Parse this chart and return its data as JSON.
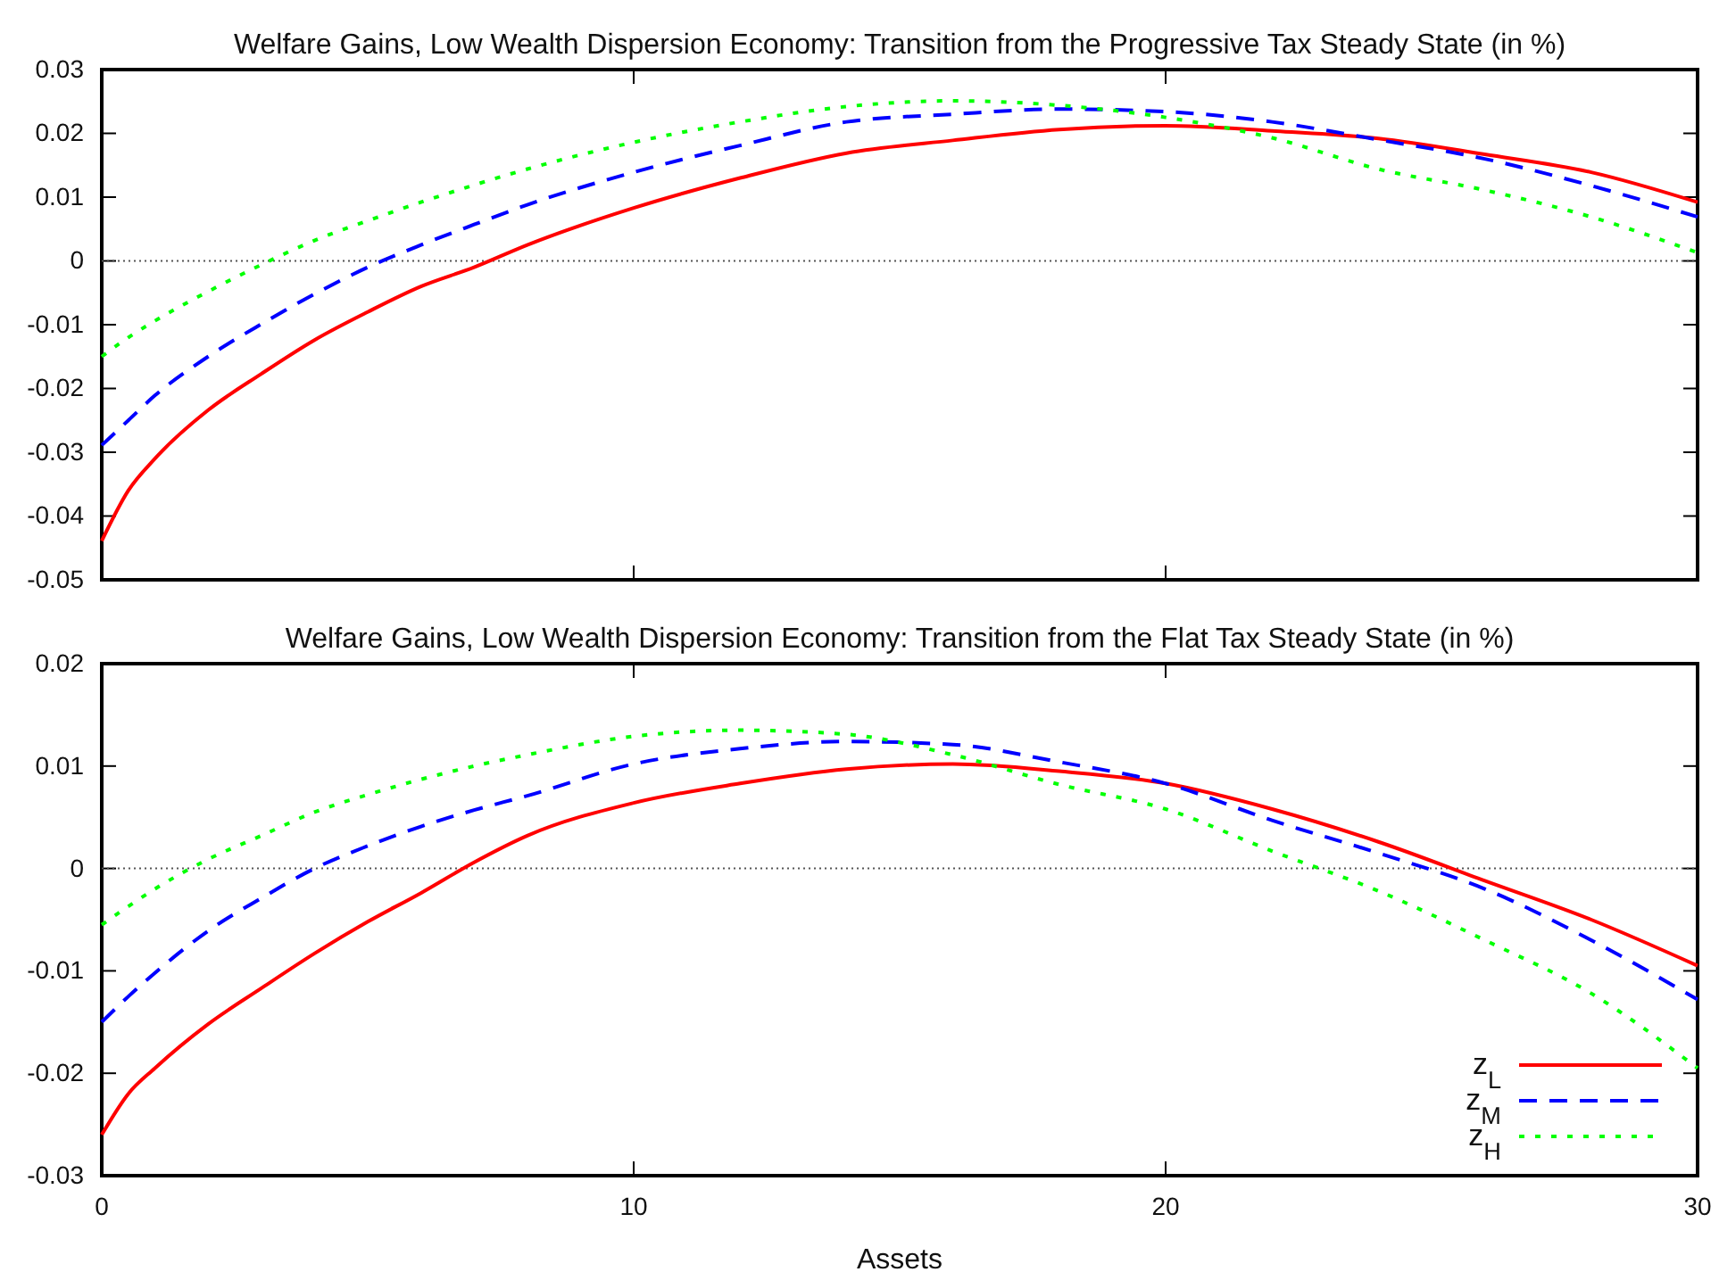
{
  "chart_data": [
    {
      "type": "line",
      "title": "Welfare Gains, Low Wealth Dispersion Economy: Transition from the Progressive Tax Steady State (in %)",
      "x": [
        0,
        0.5,
        1,
        2,
        3,
        4,
        5,
        6,
        7,
        8,
        10,
        12,
        14,
        16,
        18,
        20,
        22,
        24,
        26,
        28,
        30
      ],
      "xlim": [
        0,
        30
      ],
      "xticks": [
        0,
        10,
        20,
        30
      ],
      "ylim": [
        -0.05,
        0.03
      ],
      "yticks": [
        -0.05,
        -0.04,
        -0.03,
        -0.02,
        -0.01,
        0,
        0.01,
        0.02,
        0.03
      ],
      "tick_labels": "y",
      "grid": false,
      "legend": false,
      "ref_lines": [
        {
          "axis": "y",
          "value": 0,
          "color": "#555555",
          "line_style": "dotted"
        }
      ],
      "series": [
        {
          "color": "#ff0000",
          "line_style": "solid",
          "values": [
            -0.0439,
            -0.036,
            -0.031,
            -0.0234,
            -0.0177,
            -0.0124,
            -0.008,
            -0.004,
            -0.001,
            0.0025,
            0.0083,
            0.013,
            0.0169,
            0.0189,
            0.0206,
            0.0212,
            0.0204,
            0.0192,
            0.0167,
            0.0139,
            0.0092
          ]
        },
        {
          "color": "#0000ff",
          "line_style": "dashed",
          "values": [
            -0.0289,
            -0.025,
            -0.0211,
            -0.015,
            -0.0099,
            -0.0052,
            -0.001,
            0.0025,
            0.0057,
            0.0088,
            0.0139,
            0.0181,
            0.0218,
            0.023,
            0.0238,
            0.0234,
            0.0218,
            0.019,
            0.016,
            0.0118,
            0.0069
          ]
        },
        {
          "color": "#00ff00",
          "line_style": "dotted",
          "values": [
            -0.015,
            -0.012,
            -0.0094,
            -0.0048,
            -0.0006,
            0.0032,
            0.0063,
            0.0092,
            0.0119,
            0.0144,
            0.0186,
            0.0218,
            0.0242,
            0.0251,
            0.0244,
            0.0225,
            0.0193,
            0.0144,
            0.0111,
            0.0069,
            0.0013
          ]
        }
      ]
    },
    {
      "type": "line",
      "title": "Welfare Gains, Low Wealth Dispersion Economy: Transition from the Flat Tax Steady State (in %)",
      "xlabel": "Assets",
      "x": [
        0,
        0.5,
        1,
        2,
        3,
        4,
        5,
        6,
        7,
        8,
        10,
        12,
        14,
        16,
        18,
        20,
        22,
        24,
        26,
        28,
        30
      ],
      "xlim": [
        0,
        30
      ],
      "xticks": [
        0,
        10,
        20,
        30
      ],
      "ylim": [
        -0.03,
        0.02
      ],
      "yticks": [
        -0.03,
        -0.02,
        -0.01,
        0,
        0.01,
        0.02
      ],
      "grid": false,
      "legend": "bottom right",
      "ref_lines": [
        {
          "axis": "y",
          "value": 0,
          "color": "#555555",
          "line_style": "dotted"
        }
      ],
      "series": [
        {
          "name": "z$_{L}$",
          "color": "#ff0000",
          "line_style": "solid",
          "values": [
            -0.026,
            -0.022,
            -0.0195,
            -0.0152,
            -0.0117,
            -0.0083,
            -0.0052,
            -0.0024,
            0.0006,
            0.0032,
            0.0064,
            0.0083,
            0.0097,
            0.0102,
            0.0095,
            0.0083,
            0.0058,
            0.0026,
            -0.0012,
            -0.005,
            -0.0095
          ]
        },
        {
          "name": "z$_{M}$",
          "color": "#0000ff",
          "line_style": "dashed",
          "values": [
            -0.015,
            -0.0125,
            -0.0102,
            -0.0061,
            -0.0029,
            0,
            0.0022,
            0.0041,
            0.0057,
            0.0071,
            0.0102,
            0.0117,
            0.0124,
            0.0121,
            0.0104,
            0.0083,
            0.0047,
            0.0015,
            -0.002,
            -0.007,
            -0.0128
          ]
        },
        {
          "name": "z$_{H}$",
          "color": "#00ff00",
          "line_style": "dotted",
          "values": [
            -0.0055,
            -0.0037,
            -0.002,
            0.0009,
            0.0032,
            0.0055,
            0.0072,
            0.0087,
            0.01,
            0.0111,
            0.0129,
            0.0135,
            0.0131,
            0.0111,
            0.0082,
            0.0058,
            0.0017,
            -0.0022,
            -0.007,
            -0.0122,
            -0.0195
          ]
        }
      ]
    }
  ]
}
